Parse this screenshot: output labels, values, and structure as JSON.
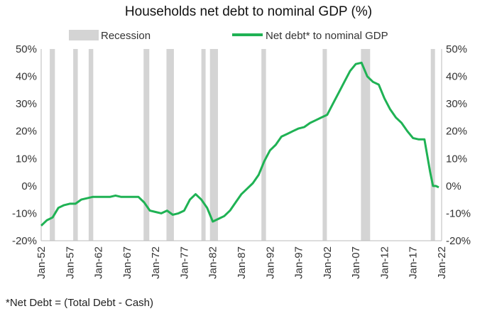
{
  "chart_data": {
    "type": "line",
    "title": "Households net debt to nominal GDP (%)",
    "footnote": "*Net Debt = (Total Debt - Cash)",
    "legend": [
      {
        "label": "Recession",
        "kind": "band",
        "color": "#d4d4d4"
      },
      {
        "label": "Net debt* to nominal GDP",
        "kind": "line",
        "color": "#1fb254"
      }
    ],
    "legend_position": "top",
    "ylim": [
      -20,
      50
    ],
    "y_ticks": [
      -20,
      -10,
      0,
      10,
      20,
      30,
      40,
      50
    ],
    "y_tick_labels": [
      "-20%",
      "-10%",
      "0%",
      "10%",
      "20%",
      "30%",
      "40%",
      "50%"
    ],
    "y_axes": [
      "left",
      "right"
    ],
    "xlim": [
      1952.0,
      2022.0
    ],
    "x_ticks": [
      1952,
      1957,
      1962,
      1967,
      1972,
      1977,
      1982,
      1987,
      1992,
      1997,
      2002,
      2007,
      2012,
      2017,
      2022
    ],
    "x_tick_labels": [
      "Jan-52",
      "Jan-57",
      "Jan-62",
      "Jan-67",
      "Jan-72",
      "Jan-77",
      "Jan-82",
      "Jan-87",
      "Jan-92",
      "Jan-97",
      "Jan-02",
      "Jan-07",
      "Jan-12",
      "Jan-17",
      "Jan-22"
    ],
    "grid": false,
    "recessions": [
      [
        1953.5,
        1954.4
      ],
      [
        1957.6,
        1958.4
      ],
      [
        1960.3,
        1961.1
      ],
      [
        1969.9,
        1970.9
      ],
      [
        1973.9,
        1975.2
      ],
      [
        1980.0,
        1980.6
      ],
      [
        1981.5,
        1982.9
      ],
      [
        1990.5,
        1991.3
      ],
      [
        2001.2,
        2001.9
      ],
      [
        2007.9,
        2009.5
      ],
      [
        2020.1,
        2020.5
      ]
    ],
    "series": [
      {
        "name": "Net debt* to nominal GDP",
        "color": "#1fb254",
        "x": [
          1952.0,
          1953.0,
          1954.0,
          1955.0,
          1956.0,
          1957.0,
          1958.0,
          1959.0,
          1960.0,
          1961.0,
          1962.0,
          1963.0,
          1964.0,
          1965.0,
          1966.0,
          1967.0,
          1968.0,
          1969.0,
          1970.0,
          1971.0,
          1972.0,
          1973.0,
          1974.0,
          1975.0,
          1976.0,
          1977.0,
          1978.0,
          1979.0,
          1980.0,
          1981.0,
          1982.0,
          1983.0,
          1984.0,
          1985.0,
          1986.0,
          1987.0,
          1988.0,
          1989.0,
          1990.0,
          1991.0,
          1992.0,
          1993.0,
          1994.0,
          1995.0,
          1996.0,
          1997.0,
          1998.0,
          1999.0,
          2000.0,
          2001.0,
          2002.0,
          2003.0,
          2004.0,
          2005.0,
          2006.0,
          2007.0,
          2008.0,
          2009.0,
          2010.0,
          2011.0,
          2012.0,
          2013.0,
          2014.0,
          2015.0,
          2016.0,
          2017.0,
          2018.0,
          2019.0,
          2020.0,
          2020.5,
          2021.0,
          2021.5
        ],
        "values": [
          -14.5,
          -12.5,
          -11.5,
          -8,
          -7,
          -6.5,
          -6.5,
          -5,
          -4.5,
          -4,
          -4,
          -4,
          -4,
          -3.5,
          -4,
          -4,
          -4,
          -4,
          -6,
          -9,
          -9.5,
          -10,
          -9,
          -10.5,
          -10,
          -9,
          -5,
          -3,
          -5,
          -8,
          -13,
          -12,
          -11,
          -9,
          -6,
          -3,
          -1,
          1,
          4,
          9,
          13,
          15,
          18,
          19,
          20,
          21,
          21.5,
          23,
          24,
          25,
          26,
          30,
          34,
          38,
          42,
          44.5,
          45,
          40,
          38,
          37,
          32,
          28,
          25,
          23,
          20,
          17.5,
          17,
          17,
          5,
          0,
          0,
          -0.5
        ]
      }
    ]
  }
}
